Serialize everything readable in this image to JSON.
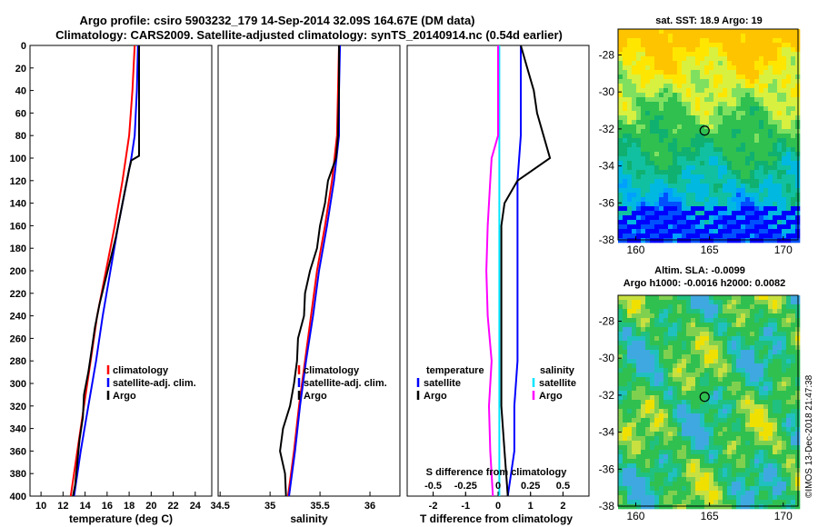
{
  "title_line1": "Argo profile: csiro 5903232_179 14-Sep-2014 32.09S 164.67E (DM data)",
  "title_line2": "Climatology: CARS2009. Satellite-adjusted climatology: synTS_20140914.nc (0.54d earlier)",
  "credit": "©IMOS 13-Dec-2018 21:47:38",
  "colors": {
    "red": "#ff0000",
    "blue": "#0000ff",
    "black": "#000000",
    "cyan": "#00e5ff",
    "magenta": "#ff00ff"
  },
  "depth_ticks": [
    0,
    20,
    40,
    60,
    80,
    100,
    120,
    140,
    160,
    180,
    200,
    220,
    240,
    260,
    280,
    300,
    320,
    340,
    360,
    380,
    400
  ],
  "chart_data": [
    {
      "type": "line",
      "id": "temperature",
      "xlabel": "temperature (deg C)",
      "xlim": [
        9,
        25.5
      ],
      "xticks": [
        10,
        12,
        14,
        16,
        18,
        20,
        22,
        24
      ],
      "ylim": [
        0,
        400
      ],
      "legend": [
        "climatology",
        "satellite-adj. clim.",
        "Argo"
      ],
      "series": [
        {
          "name": "climatology",
          "color": "#ff0000",
          "depth": [
            0,
            40,
            80,
            120,
            160,
            200,
            240,
            280,
            320,
            360,
            400
          ],
          "values": [
            18.5,
            18.3,
            18.0,
            17.4,
            16.7,
            15.9,
            15.1,
            14.5,
            13.9,
            13.3,
            12.7
          ]
        },
        {
          "name": "satellite-adj. clim.",
          "color": "#0000ff",
          "depth": [
            0,
            40,
            80,
            100,
            120,
            160,
            200,
            240,
            280,
            320,
            360,
            400
          ],
          "values": [
            18.8,
            18.7,
            18.5,
            18.2,
            17.8,
            17.0,
            16.3,
            15.6,
            15.0,
            14.3,
            13.6,
            13.0
          ]
        },
        {
          "name": "Argo",
          "color": "#000000",
          "depth": [
            0,
            20,
            40,
            60,
            80,
            98,
            102,
            110,
            130,
            150,
            170,
            190,
            210,
            230,
            250,
            270,
            290,
            310,
            330,
            350,
            370,
            390,
            400
          ],
          "values": [
            18.9,
            18.9,
            18.9,
            18.9,
            18.9,
            18.9,
            18.2,
            18.0,
            17.6,
            17.2,
            16.8,
            16.3,
            15.8,
            15.3,
            14.9,
            14.6,
            14.3,
            13.9,
            13.8,
            13.5,
            13.3,
            13.1,
            12.9
          ]
        }
      ]
    },
    {
      "type": "line",
      "id": "salinity",
      "xlabel": "salinity",
      "xlim": [
        34.48,
        36.3
      ],
      "xticks": [
        34.5,
        35,
        35.5,
        36
      ],
      "xticklabels": [
        "34.5",
        "35",
        "35.5",
        "36"
      ],
      "ylim": [
        0,
        400
      ],
      "legend": [
        "climatology",
        "satellite-adj. clim.",
        "Argo"
      ],
      "series": [
        {
          "name": "climatology",
          "color": "#ff0000",
          "depth": [
            0,
            40,
            80,
            120,
            160,
            200,
            240,
            280,
            320,
            360,
            400
          ],
          "values": [
            35.69,
            35.68,
            35.67,
            35.62,
            35.55,
            35.47,
            35.41,
            35.35,
            35.29,
            35.24,
            35.18
          ]
        },
        {
          "name": "satellite-adj. clim.",
          "color": "#0000ff",
          "depth": [
            0,
            40,
            80,
            120,
            160,
            200,
            240,
            280,
            320,
            360,
            400
          ],
          "values": [
            35.7,
            35.69,
            35.69,
            35.64,
            35.57,
            35.49,
            35.43,
            35.36,
            35.3,
            35.25,
            35.19
          ]
        },
        {
          "name": "Argo",
          "color": "#000000",
          "depth": [
            0,
            40,
            80,
            100,
            120,
            140,
            160,
            180,
            200,
            220,
            240,
            260,
            280,
            300,
            320,
            340,
            360,
            380,
            400
          ],
          "values": [
            35.69,
            35.69,
            35.68,
            35.66,
            35.58,
            35.55,
            35.5,
            35.47,
            35.4,
            35.35,
            35.34,
            35.28,
            35.27,
            35.24,
            35.2,
            35.13,
            35.1,
            35.15,
            35.16
          ]
        }
      ]
    },
    {
      "type": "line",
      "id": "difference",
      "xlabel": "T difference from climatology",
      "top_xlabel": "S difference from climatology",
      "xlim": [
        -2.8,
        2.8
      ],
      "xticks": [
        -2,
        -1,
        0,
        1,
        2
      ],
      "top_xticks": [
        -0.5,
        -0.25,
        0,
        0.25,
        0.5
      ],
      "top_xticklabels": [
        "-0.5",
        "-0.25",
        "0",
        "0.25",
        "0.5"
      ],
      "ylim": [
        0,
        400
      ],
      "legend_temperature_title": "temperature",
      "legend_salinity_title": "salinity",
      "legend_temperature": [
        "satellite",
        "Argo"
      ],
      "legend_salinity": [
        "satellite",
        "Argo"
      ],
      "series": [
        {
          "name": "T satellite",
          "color": "#0000ff",
          "depth": [
            0,
            40,
            80,
            120,
            160,
            200,
            240,
            280,
            320,
            360,
            400
          ],
          "values": [
            0.7,
            0.7,
            0.7,
            0.6,
            0.6,
            0.6,
            0.6,
            0.6,
            0.5,
            0.5,
            0.3
          ]
        },
        {
          "name": "T Argo",
          "color": "#000000",
          "depth": [
            0,
            20,
            40,
            60,
            80,
            100,
            120,
            140,
            160,
            200,
            240,
            280,
            320,
            360,
            400
          ],
          "values": [
            0.7,
            0.9,
            1.1,
            1.2,
            1.4,
            1.6,
            0.6,
            0.2,
            0.1,
            0.1,
            0.1,
            0.1,
            0.1,
            0.2,
            0.3
          ]
        },
        {
          "name": "S satellite",
          "color": "#00e5ff",
          "depth": [
            0,
            400
          ],
          "values": [
            0.01,
            0.01
          ]
        },
        {
          "name": "S Argo",
          "color": "#ff00ff",
          "depth": [
            0,
            80,
            100,
            120,
            160,
            200,
            240,
            280,
            320,
            360,
            400
          ],
          "values": [
            0.0,
            0.0,
            -0.05,
            -0.06,
            -0.08,
            -0.09,
            -0.08,
            -0.05,
            -0.07,
            -0.06,
            -0.04
          ]
        }
      ]
    },
    {
      "type": "heatmap",
      "id": "sst_map",
      "title": "sat. SST: 18.9 Argo: 19",
      "xlim": [
        158.8,
        171
      ],
      "ylim": [
        -38,
        -26.6
      ],
      "xticks": [
        160,
        165,
        170
      ],
      "yticks": [
        -28,
        -30,
        -32,
        -34,
        -36,
        -38
      ],
      "marker": [
        164.67,
        -32.09
      ]
    },
    {
      "type": "heatmap",
      "id": "sla_map",
      "title_line1": "Altim. SLA: -0.0099",
      "title_line2": "Argo h1000: -0.0016 h2000: 0.0082",
      "xlim": [
        158.8,
        171
      ],
      "ylim": [
        -38,
        -26.6
      ],
      "xticks": [
        160,
        165,
        170
      ],
      "yticks": [
        -28,
        -30,
        -32,
        -34,
        -36,
        -38
      ],
      "marker": [
        164.67,
        -32.09
      ]
    }
  ]
}
